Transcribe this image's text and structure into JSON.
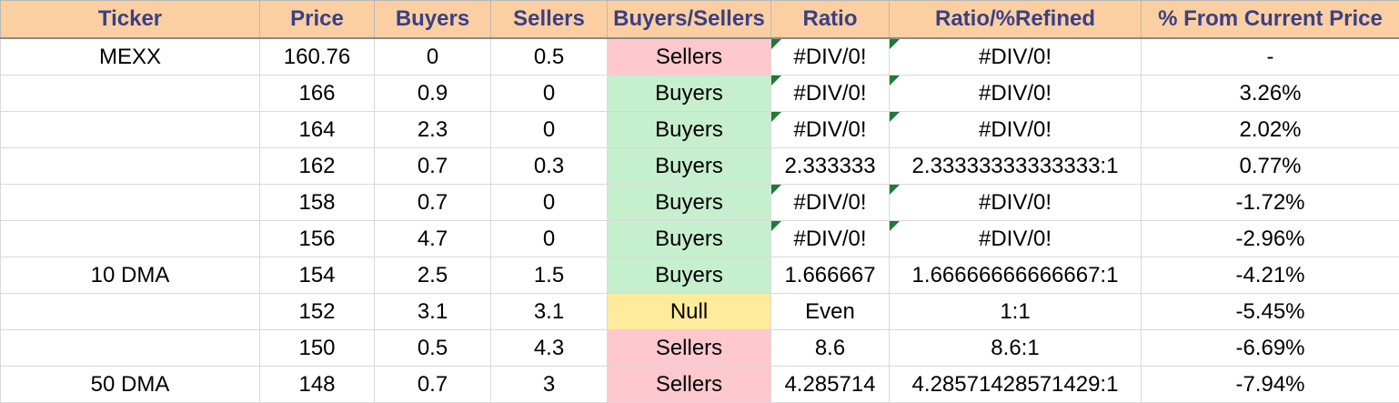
{
  "headers": [
    "Ticker",
    "Price",
    "Buyers",
    "Sellers",
    "Buyers/Sellers",
    "Ratio",
    "Ratio/%Refined",
    "% From Current Price"
  ],
  "rows": [
    {
      "ticker": "MEXX",
      "price": "160.76",
      "buyers": "0",
      "sellers": "0.5",
      "bs": "Sellers",
      "bs_type": "sellers",
      "ratio": "#DIV/0!",
      "refined": "#DIV/0!",
      "pct": "-",
      "flag": true
    },
    {
      "ticker": "",
      "price": "166",
      "buyers": "0.9",
      "sellers": "0",
      "bs": "Buyers",
      "bs_type": "buyers",
      "ratio": "#DIV/0!",
      "refined": "#DIV/0!",
      "pct": "3.26%",
      "flag": true
    },
    {
      "ticker": "",
      "price": "164",
      "buyers": "2.3",
      "sellers": "0",
      "bs": "Buyers",
      "bs_type": "buyers",
      "ratio": "#DIV/0!",
      "refined": "#DIV/0!",
      "pct": "2.02%",
      "flag": true
    },
    {
      "ticker": "",
      "price": "162",
      "buyers": "0.7",
      "sellers": "0.3",
      "bs": "Buyers",
      "bs_type": "buyers",
      "ratio": "2.333333",
      "refined": "2.33333333333333:1",
      "pct": "0.77%",
      "flag": false
    },
    {
      "ticker": "",
      "price": "158",
      "buyers": "0.7",
      "sellers": "0",
      "bs": "Buyers",
      "bs_type": "buyers",
      "ratio": "#DIV/0!",
      "refined": "#DIV/0!",
      "pct": "-1.72%",
      "flag": true
    },
    {
      "ticker": "",
      "price": "156",
      "buyers": "4.7",
      "sellers": "0",
      "bs": "Buyers",
      "bs_type": "buyers",
      "ratio": "#DIV/0!",
      "refined": "#DIV/0!",
      "pct": "-2.96%",
      "flag": true
    },
    {
      "ticker": "10 DMA",
      "price": "154",
      "buyers": "2.5",
      "sellers": "1.5",
      "bs": "Buyers",
      "bs_type": "buyers",
      "ratio": "1.666667",
      "refined": "1.66666666666667:1",
      "pct": "-4.21%",
      "flag": false
    },
    {
      "ticker": "",
      "price": "152",
      "buyers": "3.1",
      "sellers": "3.1",
      "bs": "Null",
      "bs_type": "null",
      "ratio": "Even",
      "refined": "1:1",
      "pct": "-5.45%",
      "flag": false
    },
    {
      "ticker": "",
      "price": "150",
      "buyers": "0.5",
      "sellers": "4.3",
      "bs": "Sellers",
      "bs_type": "sellers",
      "ratio": "8.6",
      "refined": "8.6:1",
      "pct": "-6.69%",
      "flag": false
    },
    {
      "ticker": "50 DMA",
      "price": "148",
      "buyers": "0.7",
      "sellers": "3",
      "bs": "Sellers",
      "bs_type": "sellers",
      "ratio": "4.285714",
      "refined": "4.28571428571429:1",
      "pct": "-7.94%",
      "flag": false
    }
  ],
  "colors": {
    "header_bg": "#fbcfa1",
    "header_text": "#3b3f86",
    "sellers_bg": "#ffc7ce",
    "sellers_text": "#9c0006",
    "buyers_bg": "#c6efce",
    "buyers_text": "#006100",
    "null_bg": "#ffeb9c",
    "null_text": "#9c5700",
    "error_flag": "#1e7b34"
  }
}
